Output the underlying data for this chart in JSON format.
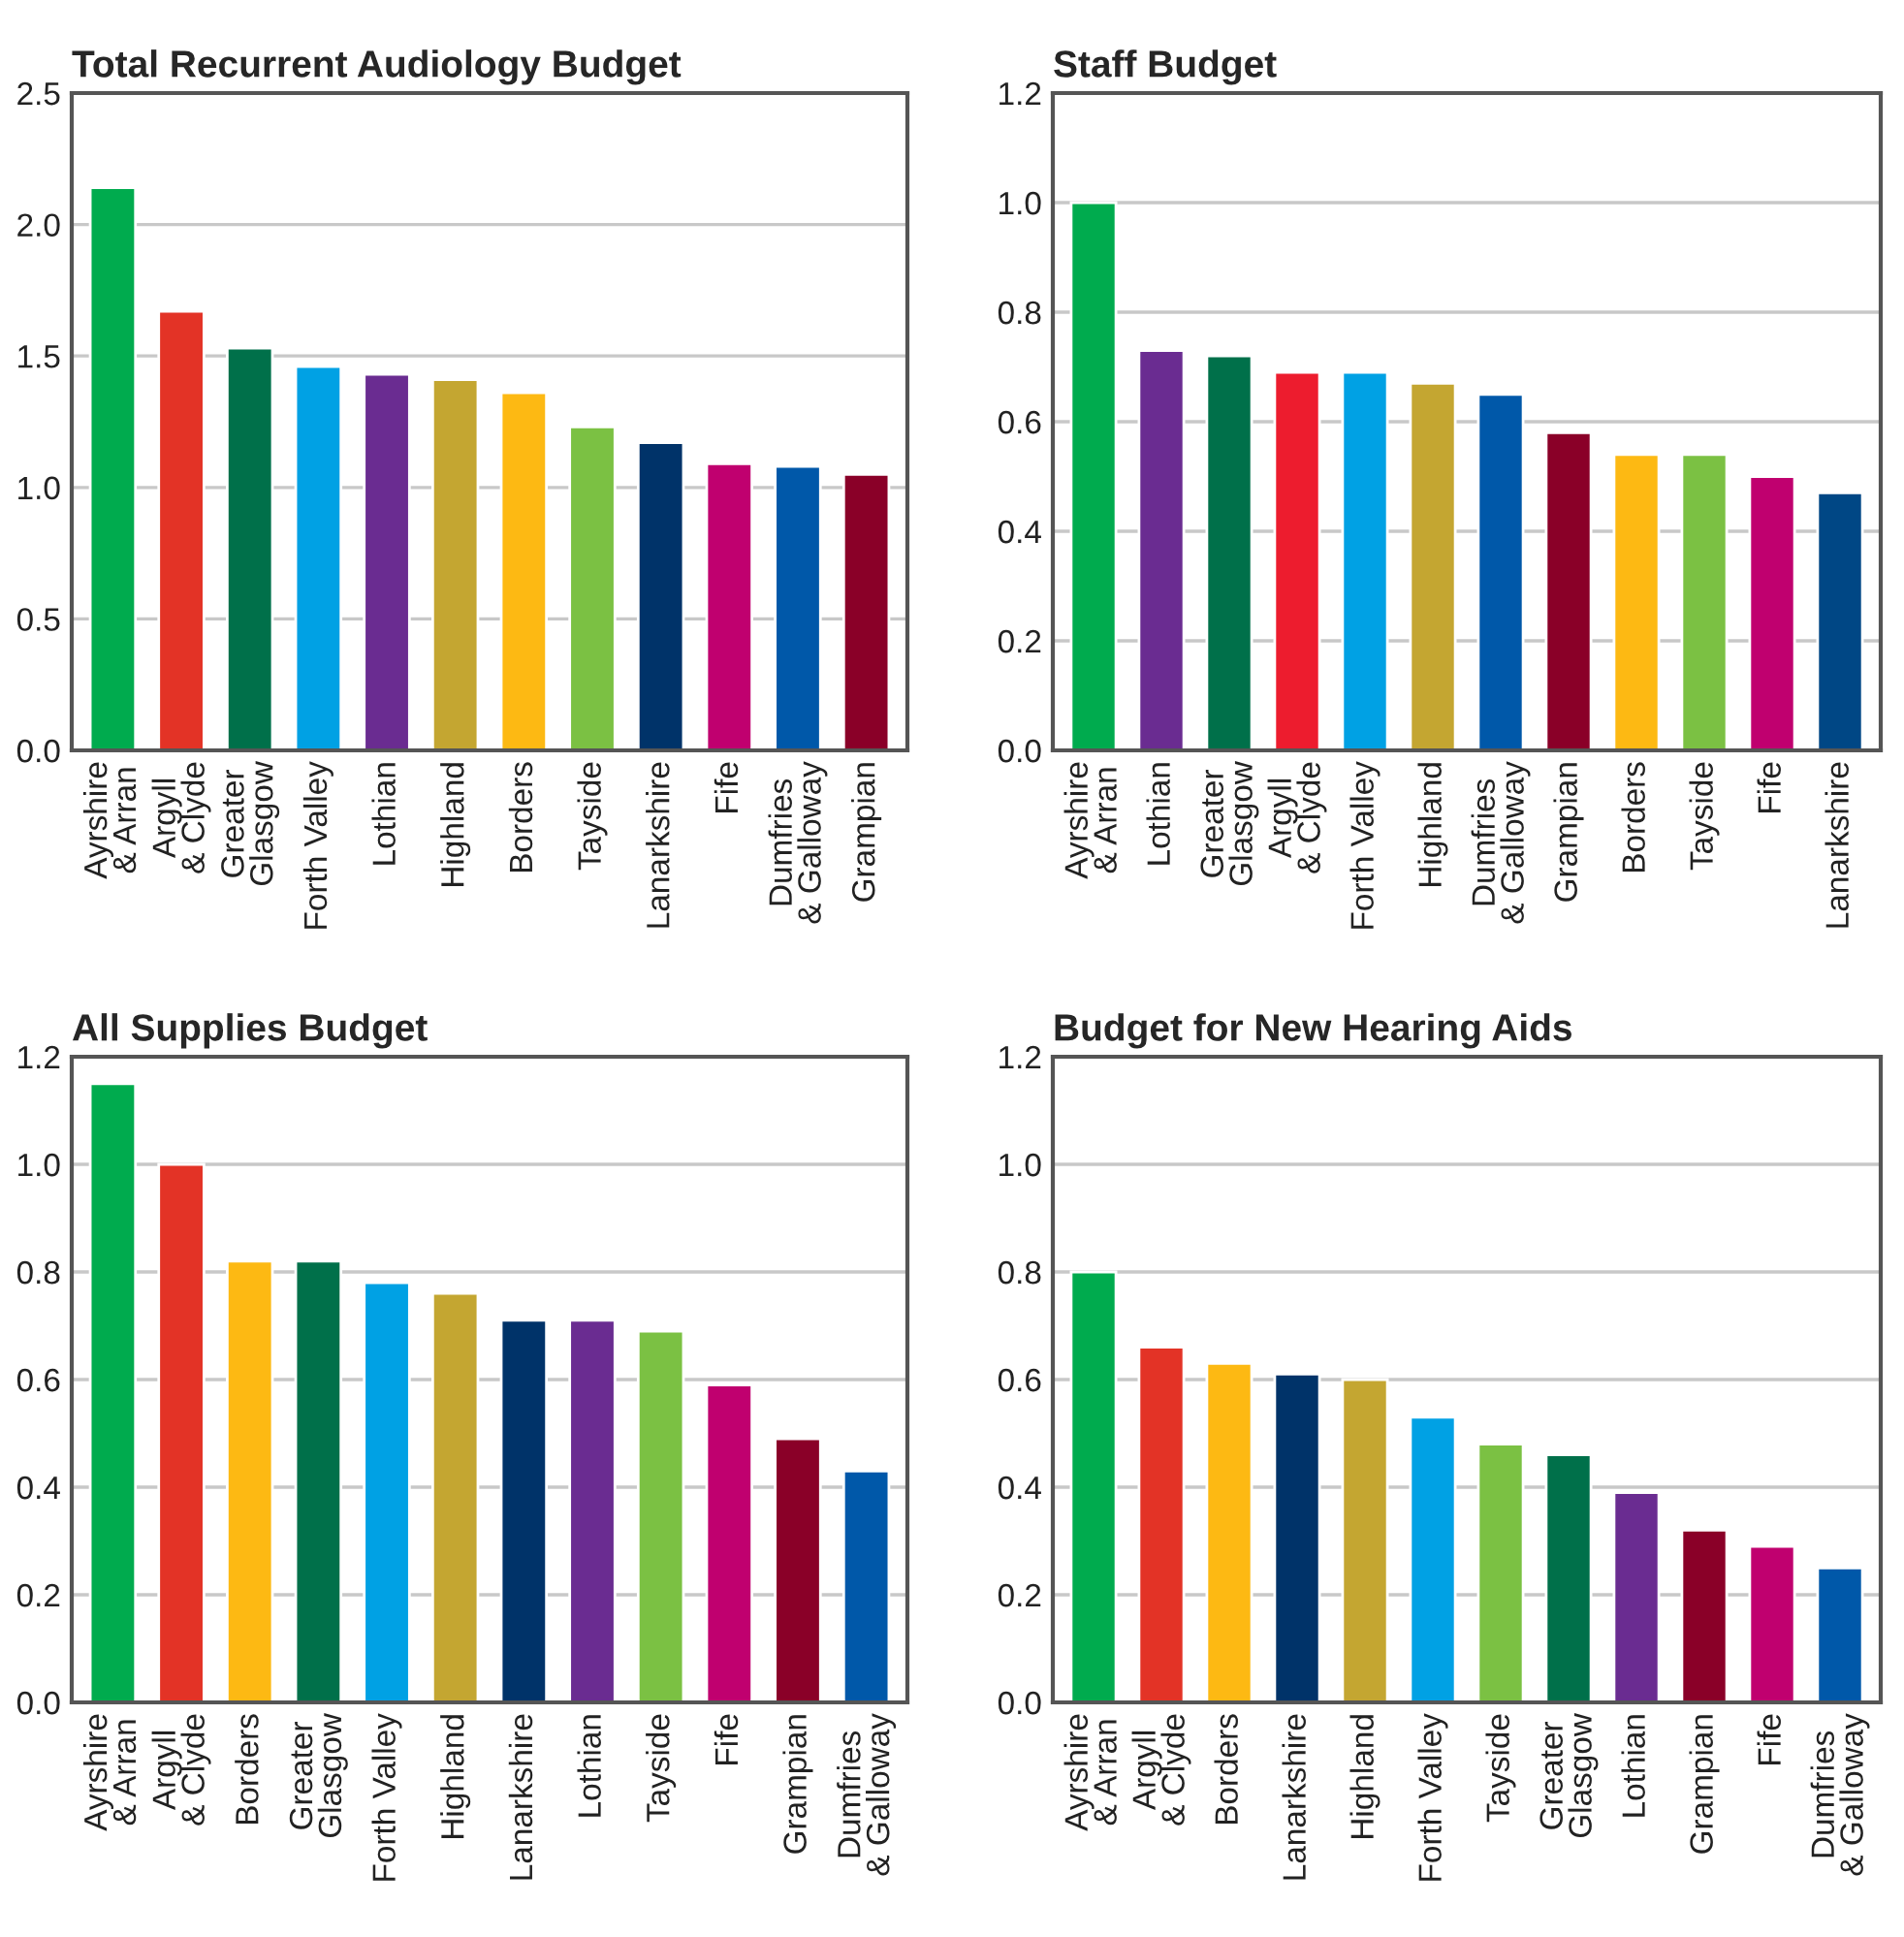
{
  "chart_data": [
    {
      "type": "bar",
      "title": "Total Recurrent Audiology Budget",
      "categories": [
        "Ayrshire\n& Arran",
        "Argyll\n& Clyde",
        "Greater\nGlasgow",
        "Forth Valley",
        "Lothian",
        "Highland",
        "Borders",
        "Tayside",
        "Lanarkshire",
        "Fife",
        "Dumfries\n& Galloway",
        "Grampian"
      ],
      "values": [
        2.14,
        1.67,
        1.53,
        1.46,
        1.43,
        1.41,
        1.36,
        1.23,
        1.17,
        1.09,
        1.08,
        1.05
      ],
      "colors": [
        "#00ab4e",
        "#e33326",
        "#00704a",
        "#00a1e4",
        "#6a2c91",
        "#c4a631",
        "#fdb913",
        "#7bc143",
        "#003369",
        "#c0006f",
        "#0058a9",
        "#8a0028"
      ],
      "ylim": [
        0,
        2.5
      ],
      "yticks": [
        {
          "value": 0,
          "label": "0.0"
        },
        0.5,
        {
          "value": 1,
          "label": "1.0"
        },
        1.5,
        {
          "value": 2,
          "label": "2.0"
        },
        2.5
      ],
      "grid": "y"
    },
    {
      "type": "bar",
      "title": "Staff Budget",
      "categories": [
        "Ayrshire\n& Arran",
        "Lothian",
        "Greater\nGlasgow",
        "Argyll\n& Clyde",
        "Forth Valley",
        "Highland",
        "Dumfries\n& Galloway",
        "Grampian",
        "Borders",
        "Tayside",
        "Fife",
        "Lanarkshire"
      ],
      "values": [
        1.0,
        0.73,
        0.72,
        0.69,
        0.69,
        0.67,
        0.65,
        0.58,
        0.54,
        0.54,
        0.5,
        0.47
      ],
      "colors": [
        "#00ab4e",
        "#6a2c91",
        "#00704a",
        "#ed1c2e",
        "#00a1e4",
        "#c4a631",
        "#0058a9",
        "#8a0028",
        "#fdb913",
        "#7bc143",
        "#c0006f",
        "#004785"
      ],
      "ylim": [
        0,
        1.2
      ],
      "yticks": [
        {
          "value": 0,
          "label": "0.0"
        },
        0.2,
        0.4,
        0.6,
        0.8,
        {
          "value": 1,
          "label": "1.0"
        },
        1.2
      ],
      "grid": "y"
    },
    {
      "type": "bar",
      "title": "All Supplies Budget",
      "categories": [
        "Ayrshire\n& Arran",
        "Argyll\n& Clyde",
        "Borders",
        "Greater\nGlasgow",
        "Forth Valley",
        "Highland",
        "Lanarkshire",
        "Lothian",
        "Tayside",
        "Fife",
        "Grampian",
        "Dumfries\n& Galloway"
      ],
      "values": [
        1.15,
        1.0,
        0.82,
        0.82,
        0.78,
        0.76,
        0.71,
        0.71,
        0.69,
        0.59,
        0.49,
        0.43
      ],
      "colors": [
        "#00ab4e",
        "#e33326",
        "#fdb913",
        "#00704a",
        "#00a1e4",
        "#c4a631",
        "#003369",
        "#6a2c91",
        "#7bc143",
        "#c0006f",
        "#8a0028",
        "#0058a9"
      ],
      "ylim": [
        0,
        1.2
      ],
      "yticks": [
        {
          "value": 0,
          "label": "0.0"
        },
        0.2,
        0.4,
        0.6,
        0.8,
        {
          "value": 1,
          "label": "1.0"
        },
        1.2
      ],
      "grid": "y"
    },
    {
      "type": "bar",
      "title": "Budget for New Hearing Aids",
      "categories": [
        "Ayrshire\n& Arran",
        "Argyll\n& Clyde",
        "Borders",
        "Lanarkshire",
        "Highland",
        "Forth Valley",
        "Tayside",
        "Greater\nGlasgow",
        "Lothian",
        "Grampian",
        "Fife",
        "Dumfries\n& Galloway"
      ],
      "values": [
        0.8,
        0.66,
        0.63,
        0.61,
        0.6,
        0.53,
        0.48,
        0.46,
        0.39,
        0.32,
        0.29,
        0.25
      ],
      "colors": [
        "#00ab4e",
        "#e33326",
        "#fdb913",
        "#003369",
        "#c4a631",
        "#00a1e4",
        "#7bc143",
        "#00704a",
        "#6a2c91",
        "#8a0028",
        "#c0006f",
        "#0058a9"
      ],
      "ylim": [
        0,
        1.2
      ],
      "yticks": [
        {
          "value": 0,
          "label": "0.0"
        },
        0.2,
        0.4,
        0.6,
        0.8,
        {
          "value": 1,
          "label": "1.0"
        },
        1.2
      ],
      "grid": "y"
    }
  ]
}
